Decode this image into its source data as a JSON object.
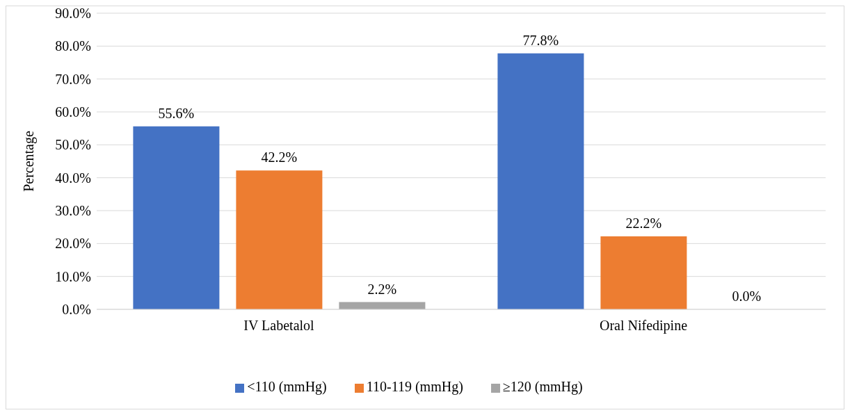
{
  "chart_data": {
    "type": "bar",
    "ylabel": "Percentage",
    "categories": [
      "IV Labetalol",
      "Oral Nifedipine"
    ],
    "series": [
      {
        "name": "<110 (mmHg)",
        "color": "#4472c4",
        "values": [
          55.6,
          77.8
        ],
        "value_labels": [
          "55.6%",
          "77.8%"
        ]
      },
      {
        "name": "110-119 (mmHg)",
        "color": "#ed7d31",
        "values": [
          42.2,
          22.2
        ],
        "value_labels": [
          "42.2%",
          "22.2%"
        ]
      },
      {
        "name": "≥120 (mmHg)",
        "color": "#a5a5a5",
        "values": [
          2.2,
          0
        ],
        "value_labels": [
          "2.2%",
          "0.0%"
        ]
      }
    ],
    "ylim": [
      0,
      90
    ],
    "yticks": [
      {
        "value": 0,
        "label": "0.0%"
      },
      {
        "value": 10,
        "label": "10.0%"
      },
      {
        "value": 20,
        "label": "20.0%"
      },
      {
        "value": 30,
        "label": "30.0%"
      },
      {
        "value": 40,
        "label": "40.0%"
      },
      {
        "value": 50,
        "label": "50.0%"
      },
      {
        "value": 60,
        "label": "60.0%"
      },
      {
        "value": 70,
        "label": "70.0%"
      },
      {
        "value": 80,
        "label": "80.0%"
      },
      {
        "value": 90,
        "label": "90.0%"
      }
    ],
    "grid": "y",
    "legend": "bottom"
  }
}
